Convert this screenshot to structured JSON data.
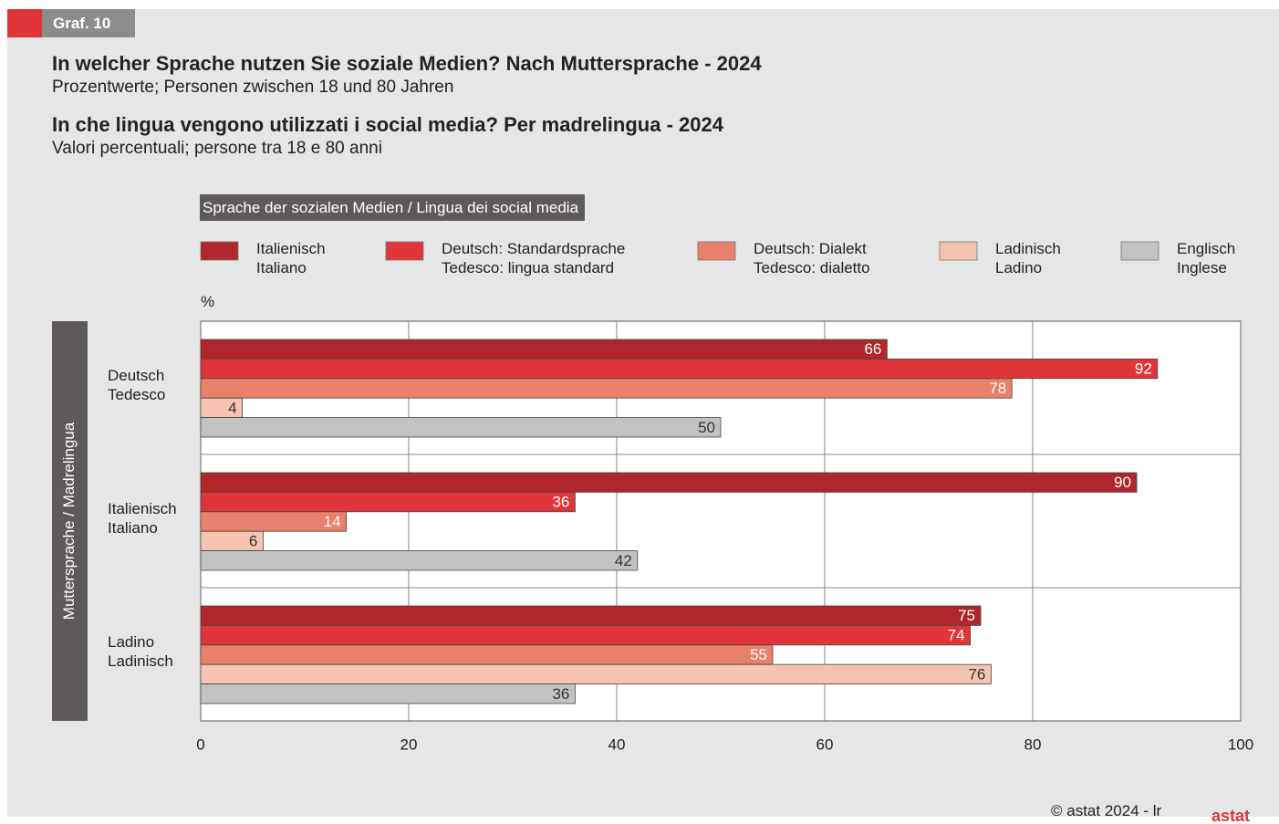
{
  "header": {
    "badge": "Graf. 10",
    "title_de": "In welcher Sprache nutzen Sie soziale Medien? Nach Muttersprache - 2024",
    "subtitle_de": "Prozentwerte; Personen zwischen 18 und 80 Jahren",
    "title_it": "In che lingua vengono utilizzati i social media? Per madrelingua - 2024",
    "subtitle_it": "Valori percentuali; persone tra 18 e 80 anni"
  },
  "footer": {
    "copyright": "© astat 2024 - lr",
    "logo": "astat"
  },
  "chart_data": {
    "type": "bar",
    "orientation": "horizontal",
    "legend_title": "Sprache der sozialen Medien / Lingua dei social media",
    "y_axis_label": "Muttersprache / Madrelingua",
    "x_unit": "%",
    "categories": [
      "Deutsch\nTedesco",
      "Italienisch\nItaliano",
      "Ladino\nLadinisch"
    ],
    "series": [
      {
        "name": "Italienisch\nItaliano",
        "color": "#b0262a",
        "label_color": "#ffffff",
        "values": [
          66,
          90,
          75
        ]
      },
      {
        "name": "Deutsch: Standardsprache\nTedesco: lingua standard",
        "color": "#e0363a",
        "label_color": "#ffffff",
        "values": [
          92,
          36,
          74
        ]
      },
      {
        "name": "Deutsch: Dialekt\nTedesco: dialetto",
        "color": "#e8806a",
        "label_color": "#ffffff",
        "values": [
          78,
          14,
          55
        ]
      },
      {
        "name": "Ladinisch\nLadino",
        "color": "#f6c4b0",
        "label_color": "#333333",
        "values": [
          4,
          6,
          76
        ]
      },
      {
        "name": "Englisch\nInglese",
        "color": "#c2c2c2",
        "label_color": "#333333",
        "values": [
          50,
          42,
          36
        ]
      }
    ],
    "xlim": [
      0,
      100
    ],
    "xticks": [
      0,
      20,
      40,
      60,
      80,
      100
    ],
    "grid": true
  }
}
